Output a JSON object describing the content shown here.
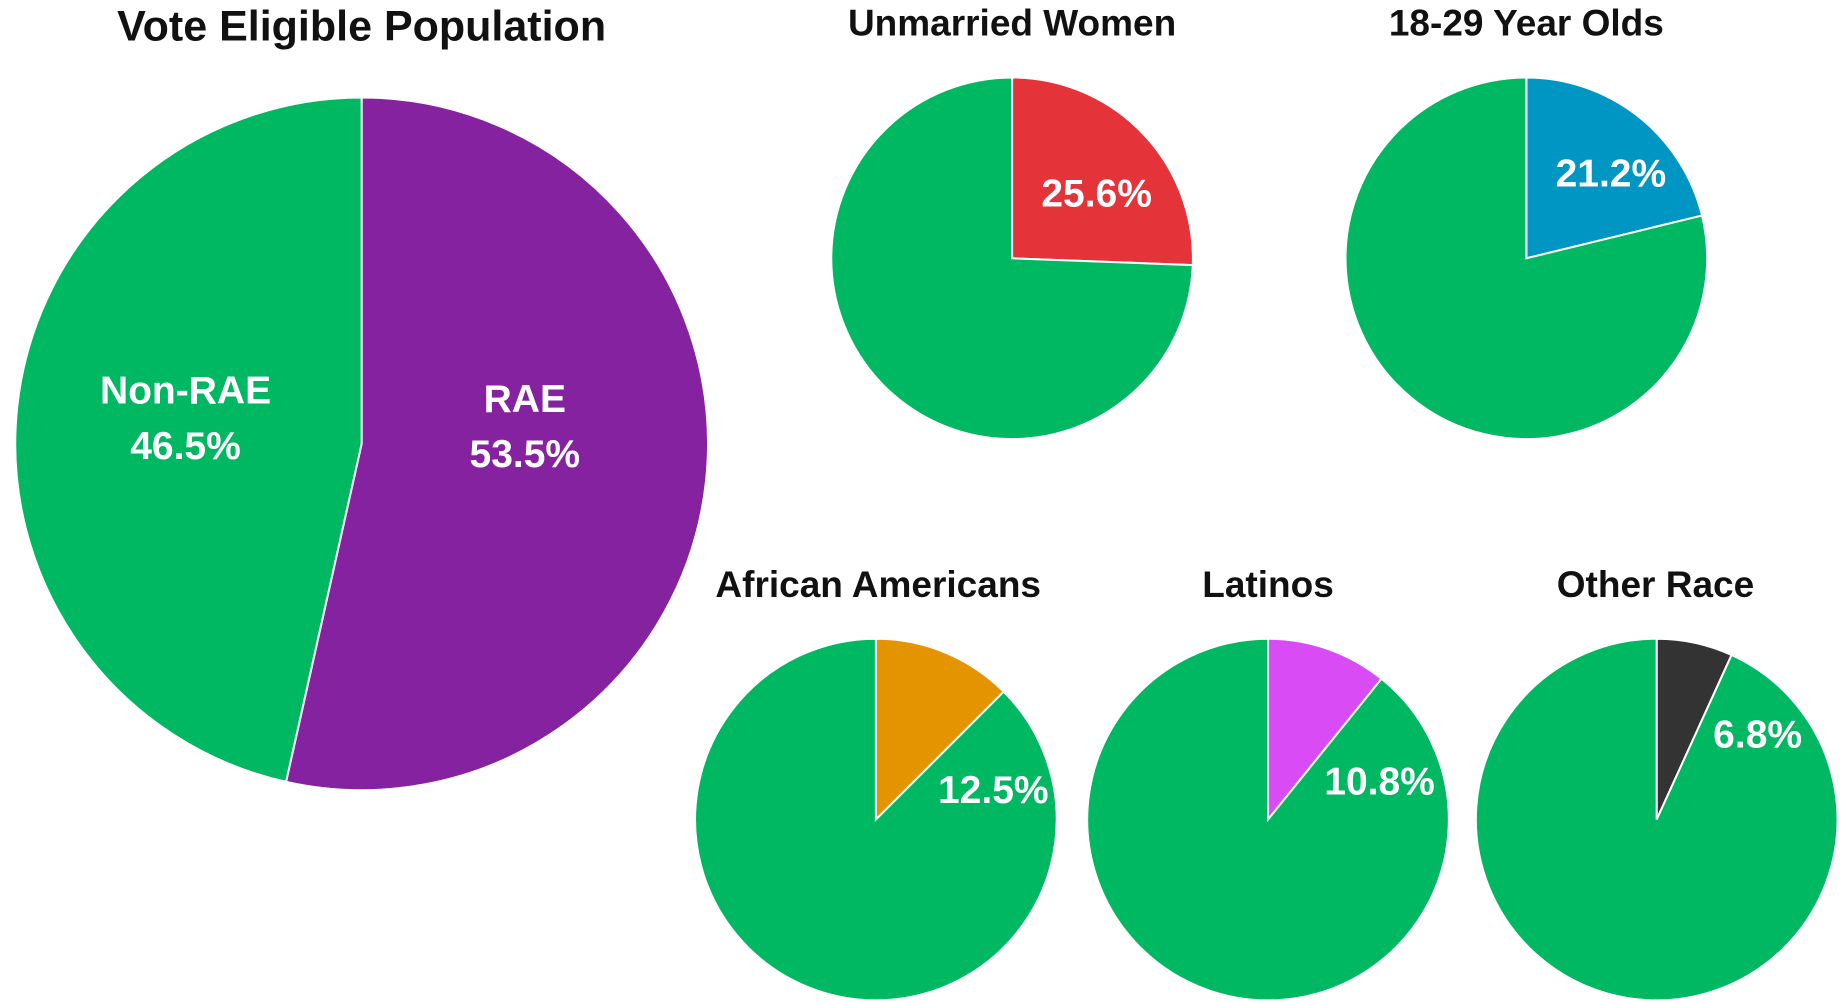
{
  "chart_data": [
    {
      "type": "pie",
      "title": "Vote Eligible Population",
      "categories": [
        "RAE",
        "Non-RAE"
      ],
      "values": [
        53.5,
        46.5
      ],
      "value_labels": [
        "53.5%",
        "46.5%"
      ],
      "colors": [
        "#8422a0",
        "#00b862"
      ]
    },
    {
      "type": "pie",
      "title": "Unmarried Women",
      "values": [
        25.6,
        74.4
      ],
      "value_labels": [
        "25.6%",
        null
      ],
      "colors": [
        "#e5333a",
        "#00b862"
      ]
    },
    {
      "type": "pie",
      "title": "18-29 Year Olds",
      "values": [
        21.2,
        78.8
      ],
      "value_labels": [
        "21.2%",
        null
      ],
      "colors": [
        "#0096c4",
        "#00b862"
      ]
    },
    {
      "type": "pie",
      "title": "African Americans",
      "values": [
        12.5,
        87.5
      ],
      "value_labels": [
        "12.5%",
        null
      ],
      "colors": [
        "#e39400",
        "#00b862"
      ]
    },
    {
      "type": "pie",
      "title": "Latinos",
      "values": [
        10.8,
        89.2
      ],
      "value_labels": [
        "10.8%",
        null
      ],
      "colors": [
        "#d94cf5",
        "#00b862"
      ]
    },
    {
      "type": "pie",
      "title": "Other Race",
      "values": [
        6.8,
        93.2
      ],
      "value_labels": [
        "6.8%",
        null
      ],
      "colors": [
        "#333333",
        "#00b862"
      ]
    }
  ]
}
